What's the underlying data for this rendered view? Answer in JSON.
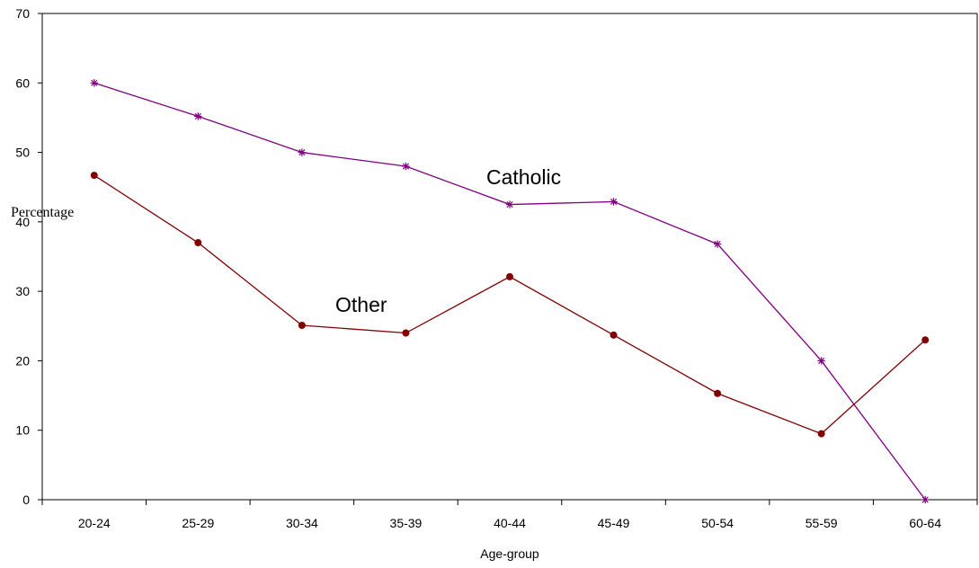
{
  "chart_data": {
    "type": "line",
    "xlabel": "Age-group",
    "ylabel": "Percentage",
    "categories": [
      "20-24",
      "25-29",
      "30-34",
      "35-39",
      "40-44",
      "45-49",
      "50-54",
      "55-59",
      "60-64"
    ],
    "ylim": [
      0,
      70
    ],
    "yticks": [
      0,
      10,
      20,
      30,
      40,
      50,
      60,
      70
    ],
    "grid": false,
    "legend": "none",
    "series": [
      {
        "name": "Catholic",
        "color": "#800080",
        "marker": "asterisk",
        "values": [
          60,
          55.2,
          50,
          48,
          42.5,
          42.9,
          36.8,
          20,
          0
        ]
      },
      {
        "name": "Other",
        "color": "#800000",
        "marker": "circle",
        "values": [
          46.7,
          37,
          25.1,
          24,
          32.1,
          23.7,
          15.3,
          9.5,
          23
        ]
      }
    ]
  }
}
